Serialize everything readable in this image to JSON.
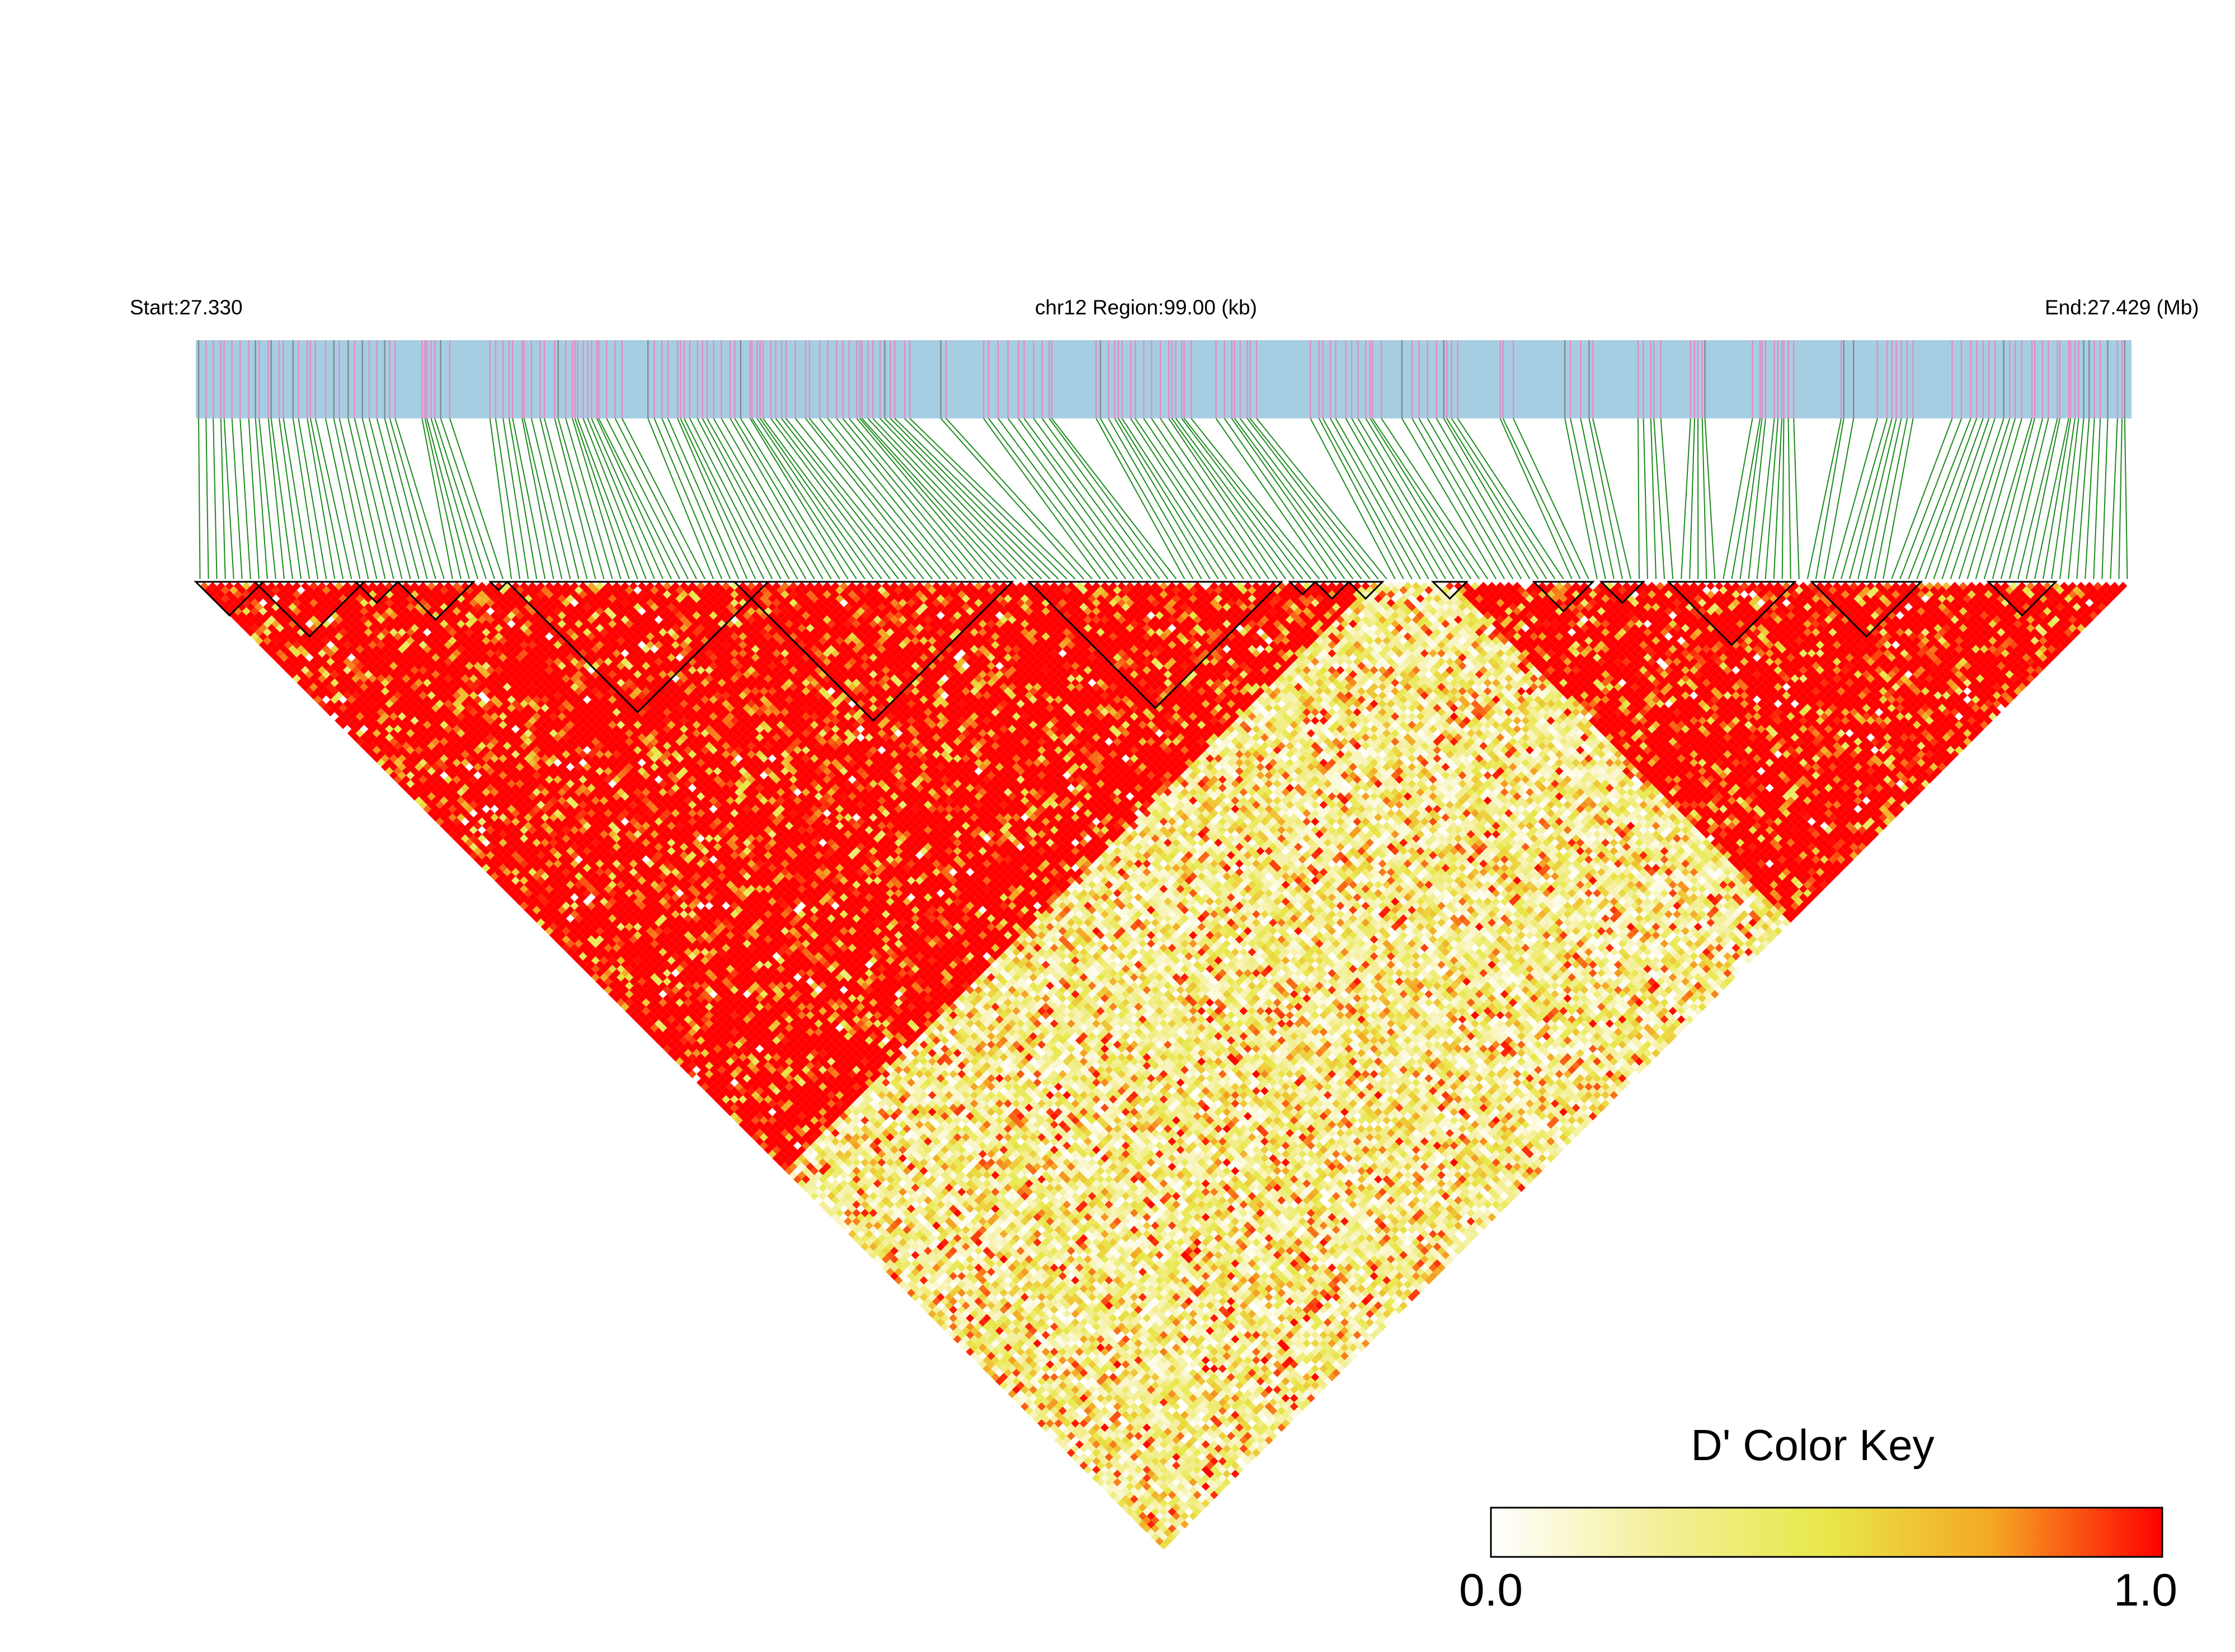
{
  "header": {
    "start_label": "Start:27.330",
    "region_label": "chr12 Region:99.00 (kb)",
    "end_label": "End:27.429 (Mb)"
  },
  "colors": {
    "track_bg": "#a6cee3",
    "snp_tick_pink": "#e78ac3",
    "snp_tick_gray": "#7f8c8d",
    "connector_green": "#1a8a1a",
    "block_outline": "#000000",
    "ld_high": "#ff0000",
    "ld_mid": "#f5e25c",
    "ld_low": "#ffffff"
  },
  "legend": {
    "title": "D' Color Key",
    "min_label": "0.0",
    "max_label": "1.0",
    "stops": [
      "#ffffff",
      "#f4ef9a",
      "#e8e84a",
      "#f5a623",
      "#ff0000"
    ]
  },
  "chart_data": {
    "type": "heatmap",
    "subtype": "linkage-disequilibrium-triangle",
    "chromosome": "chr12",
    "region_start_mb": 27.33,
    "region_end_mb": 27.429,
    "region_size_kb": 99.0,
    "metric": "D'",
    "value_range": [
      0.0,
      1.0
    ],
    "n_snps": 230,
    "ld_structure": {
      "high_ld_segments": [
        {
          "snp_from": 1,
          "snp_to": 140,
          "typical_D_prime": 0.95
        },
        {
          "snp_from": 150,
          "snp_to": 230,
          "typical_D_prime": 0.9
        }
      ],
      "low_ld_between_segments_typical_D_prime": 0.3
    },
    "haplotype_blocks": [
      {
        "snp_from": 1,
        "snp_to": 8
      },
      {
        "snp_from": 8,
        "snp_to": 20
      },
      {
        "snp_from": 20,
        "snp_to": 24
      },
      {
        "snp_from": 25,
        "snp_to": 33
      },
      {
        "snp_from": 36,
        "snp_to": 37
      },
      {
        "snp_from": 38,
        "snp_to": 68
      },
      {
        "snp_from": 65,
        "snp_to": 97
      },
      {
        "snp_from": 100,
        "snp_to": 129
      },
      {
        "snp_from": 131,
        "snp_to": 133
      },
      {
        "snp_from": 134,
        "snp_to": 137
      },
      {
        "snp_from": 138,
        "snp_to": 141
      },
      {
        "snp_from": 148,
        "snp_to": 151
      },
      {
        "snp_from": 160,
        "snp_to": 166
      },
      {
        "snp_from": 168,
        "snp_to": 172
      },
      {
        "snp_from": 176,
        "snp_to": 190
      },
      {
        "snp_from": 193,
        "snp_to": 205
      },
      {
        "snp_from": 214,
        "snp_to": 221
      }
    ]
  }
}
